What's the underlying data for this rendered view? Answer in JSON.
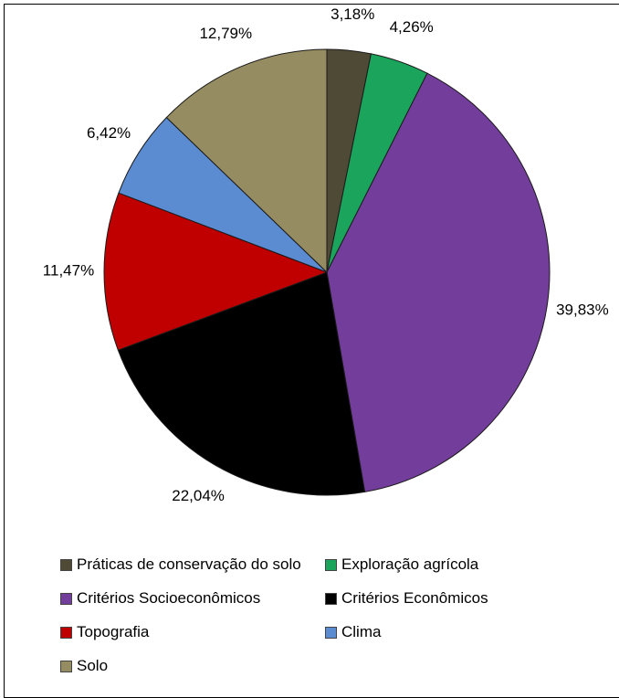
{
  "chart_data": {
    "type": "pie",
    "title": "",
    "start_angle_deg": 0,
    "direction": "clockwise",
    "slices": [
      {
        "name": "Práticas de conservação do solo",
        "value": 3.18,
        "label": "3,18%",
        "color": "#4f4a35"
      },
      {
        "name": "Exploração agrícola",
        "value": 4.26,
        "label": "4,26%",
        "color": "#1aa45c"
      },
      {
        "name": "Critérios Socioeconômicos",
        "value": 39.83,
        "label": "39,83%",
        "color": "#733d9b"
      },
      {
        "name": "Critérios Econômicos",
        "value": 22.04,
        "label": "22,04%",
        "color": "#000000"
      },
      {
        "name": "Topografia",
        "value": 11.47,
        "label": "11,47%",
        "color": "#c00000"
      },
      {
        "name": "Clima",
        "value": 6.42,
        "label": "6,42%",
        "color": "#5b8bd0"
      },
      {
        "name": "Solo",
        "value": 12.79,
        "label": "12,79%",
        "color": "#958c62"
      }
    ],
    "legend_position": "bottom"
  },
  "legend": {
    "items": [
      {
        "label": "Práticas de conservação do solo",
        "color": "#4f4a35"
      },
      {
        "label": "Exploração agrícola",
        "color": "#1aa45c"
      },
      {
        "label": "Critérios Socioeconômicos",
        "color": "#733d9b"
      },
      {
        "label": "Critérios Econômicos",
        "color": "#000000"
      },
      {
        "label": "Topografia",
        "color": "#c00000"
      },
      {
        "label": "Clima",
        "color": "#5b8bd0"
      },
      {
        "label": "Solo",
        "color": "#958c62"
      }
    ]
  }
}
